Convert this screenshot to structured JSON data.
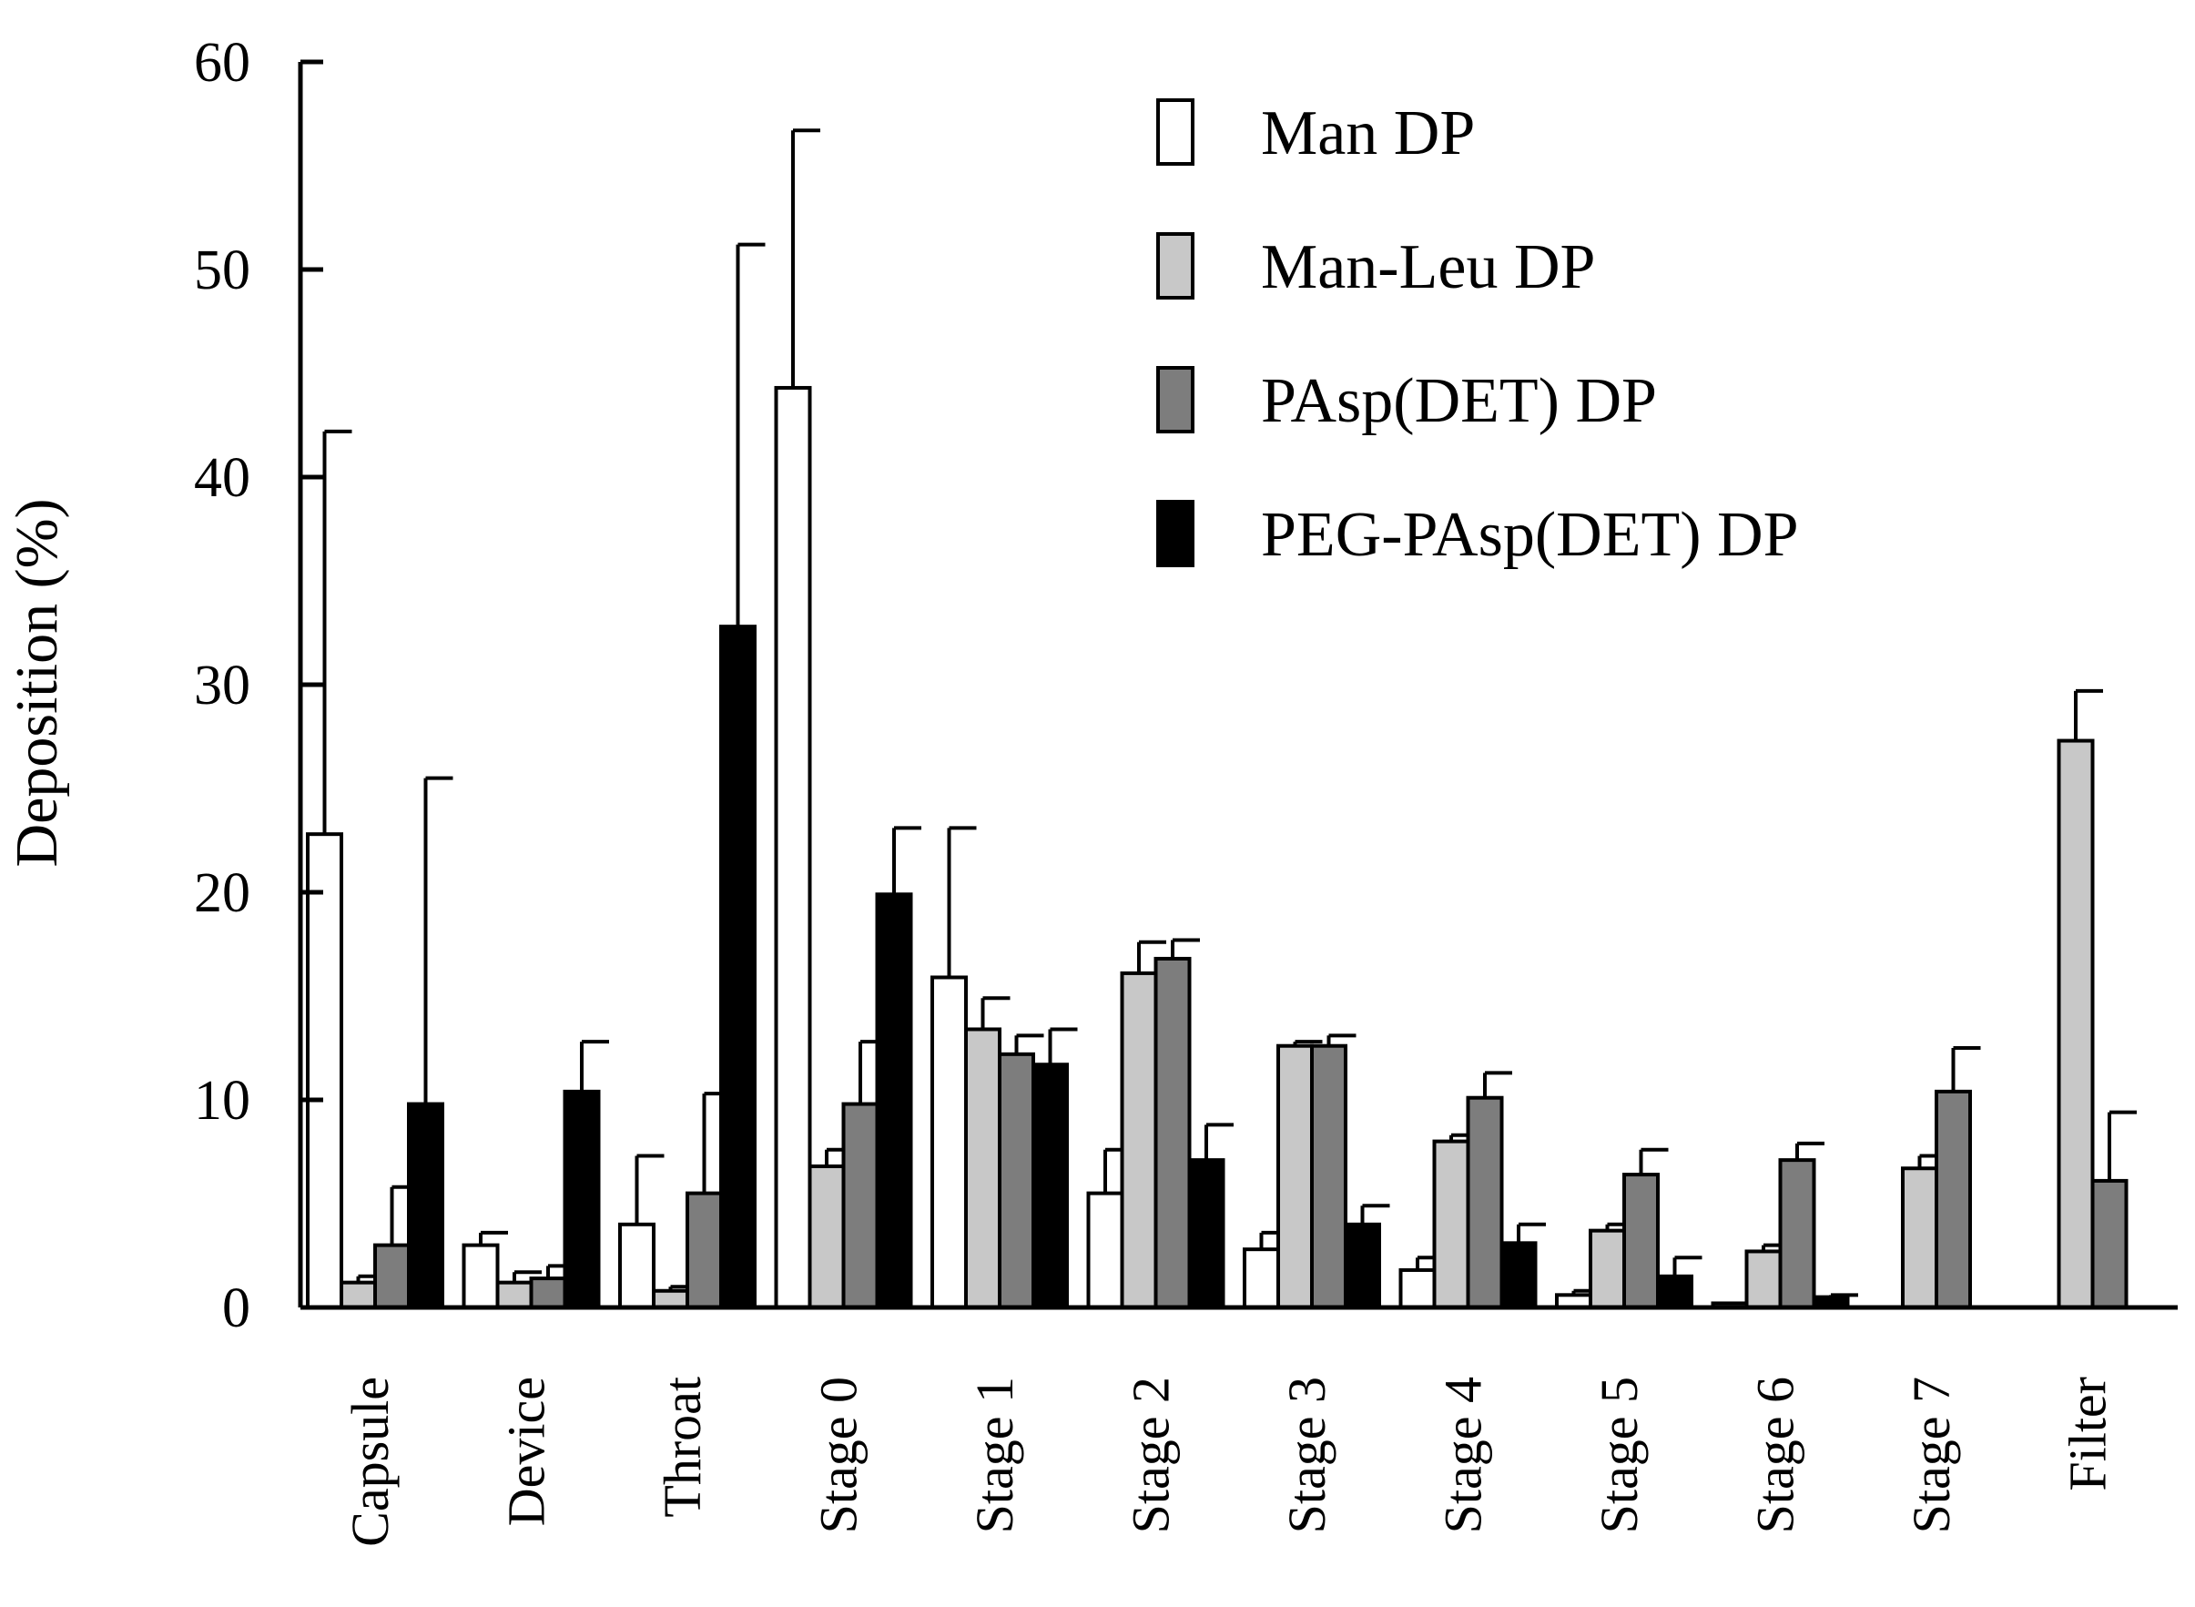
{
  "chart_data": {
    "type": "bar",
    "title": "",
    "xlabel": "",
    "ylabel": "Deposition (%)",
    "ylim": [
      0,
      60
    ],
    "yticks": [
      0,
      10,
      20,
      30,
      40,
      50,
      60
    ],
    "grid": false,
    "legend_position": "top-right",
    "categories": [
      "Capsule",
      "Device",
      "Throat",
      "Stage 0",
      "Stage 1",
      "Stage 2",
      "Stage 3",
      "Stage 4",
      "Stage 5",
      "Stage 6",
      "Stage 7",
      "Filter"
    ],
    "series": [
      {
        "name": "Man DP",
        "color": "#ffffff",
        "values": [
          22.8,
          3.0,
          4.0,
          44.3,
          15.9,
          5.5,
          2.8,
          1.8,
          0.6,
          0.2,
          0,
          0
        ],
        "errors": [
          19.4,
          0.6,
          3.3,
          12.4,
          7.2,
          2.1,
          0.8,
          0.6,
          0.2,
          0.0,
          0,
          0
        ]
      },
      {
        "name": "Man-Leu DP",
        "color": "#c8c8c8",
        "values": [
          1.2,
          1.2,
          0.8,
          6.8,
          13.4,
          16.1,
          12.6,
          8.0,
          3.7,
          2.7,
          6.7,
          27.3
        ],
        "errors": [
          0.3,
          0.5,
          0.2,
          0.8,
          1.5,
          1.5,
          0.2,
          0.3,
          0.3,
          0.3,
          0.6,
          2.4
        ]
      },
      {
        "name": "PAsp(DET) DP",
        "color": "#7d7d7d",
        "values": [
          3.0,
          1.4,
          5.5,
          9.8,
          12.2,
          16.8,
          12.6,
          10.1,
          6.4,
          7.1,
          10.4,
          6.1
        ],
        "errors": [
          2.8,
          0.6,
          4.8,
          3.0,
          0.9,
          0.9,
          0.5,
          1.2,
          1.2,
          0.8,
          2.1,
          3.3
        ]
      },
      {
        "name": "PEG-PAsp(DET) DP",
        "color": "#000000",
        "values": [
          9.8,
          10.4,
          32.8,
          19.9,
          11.7,
          7.1,
          4.0,
          3.1,
          1.5,
          0.5,
          0,
          0
        ],
        "errors": [
          15.7,
          2.4,
          18.4,
          3.2,
          1.7,
          1.7,
          0.9,
          0.9,
          0.9,
          0.1,
          0,
          0
        ]
      }
    ]
  }
}
